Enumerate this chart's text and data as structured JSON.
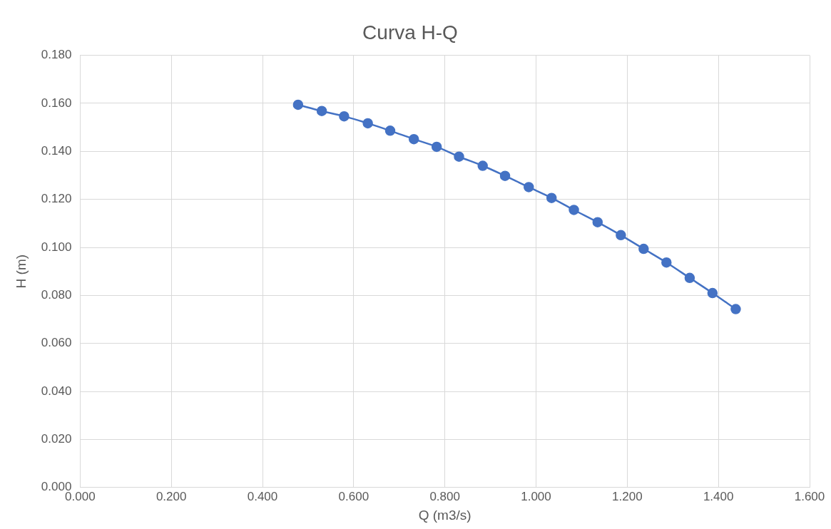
{
  "chart_data": {
    "type": "line",
    "title": "Curva H-Q",
    "xlabel": "Q (m3/s)",
    "ylabel": "H (m)",
    "x": [
      0.478,
      0.53,
      0.579,
      0.631,
      0.68,
      0.732,
      0.782,
      0.831,
      0.883,
      0.932,
      0.984,
      1.034,
      1.083,
      1.135,
      1.186,
      1.236,
      1.286,
      1.337,
      1.387,
      1.438
    ],
    "series": [
      {
        "color": "#4472c4",
        "values": [
          0.1594,
          0.1568,
          0.1546,
          0.1517,
          0.1486,
          0.1451,
          0.1419,
          0.1378,
          0.134,
          0.1298,
          0.1251,
          0.1206,
          0.1156,
          0.1105,
          0.1051,
          0.0994,
          0.0937,
          0.0873,
          0.081,
          0.0743
        ]
      }
    ],
    "xlim": [
      0,
      1.6
    ],
    "xticks": [
      {
        "value": 0,
        "label": "0.000"
      },
      {
        "value": 0.2,
        "label": "0.200"
      },
      {
        "value": 0.4,
        "label": "0.400"
      },
      {
        "value": 0.6,
        "label": "0.600"
      },
      {
        "value": 0.8,
        "label": "0.800"
      },
      {
        "value": 1,
        "label": "1.000"
      },
      {
        "value": 1.2,
        "label": "1.200"
      },
      {
        "value": 1.4,
        "label": "1.400"
      },
      {
        "value": 1.6,
        "label": "1.600"
      }
    ],
    "ylim": [
      0,
      0.18
    ],
    "yticks": [
      {
        "value": 0,
        "label": "0.000"
      },
      {
        "value": 0.02,
        "label": "0.020"
      },
      {
        "value": 0.04,
        "label": "0.040"
      },
      {
        "value": 0.06,
        "label": "0.060"
      },
      {
        "value": 0.08,
        "label": "0.080"
      },
      {
        "value": 0.1,
        "label": "0.100"
      },
      {
        "value": 0.12,
        "label": "0.120"
      },
      {
        "value": 0.14,
        "label": "0.140"
      },
      {
        "value": 0.16,
        "label": "0.160"
      },
      {
        "value": 0.18,
        "label": "0.180"
      }
    ],
    "grid": true,
    "legend": false,
    "marker": "circle",
    "line_style": "solid"
  }
}
